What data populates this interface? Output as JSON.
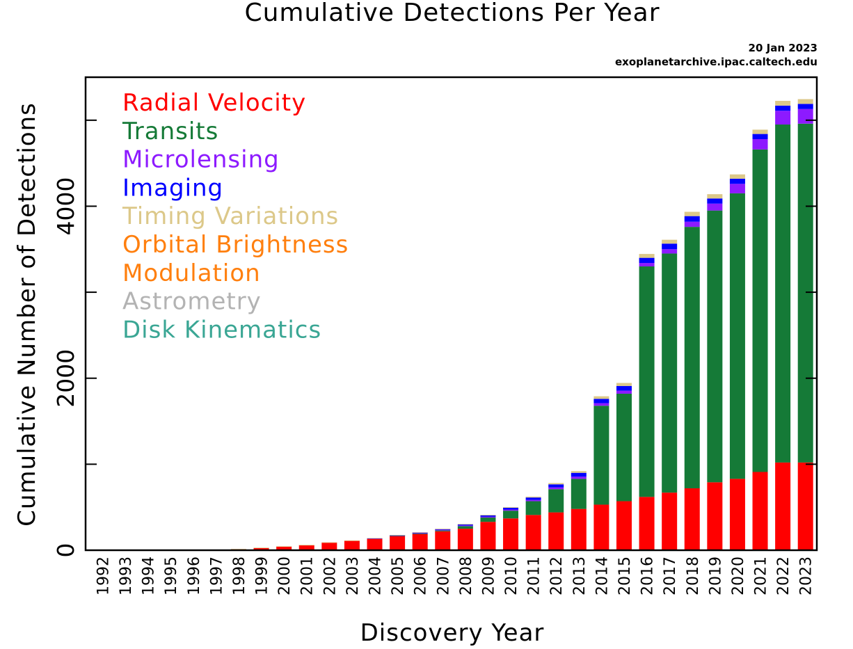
{
  "chart_data": {
    "type": "bar",
    "stacked": true,
    "title": "Cumulative Detections Per Year",
    "xlabel": "Discovery Year",
    "ylabel": "Cumulative Number of Detections",
    "credit_date": "20 Jan 2023",
    "credit_source": "exoplanetarchive.ipac.caltech.edu",
    "ylim": [
      0,
      5500
    ],
    "yticks_labeled": [
      0,
      2000,
      4000
    ],
    "yticks_minor": [
      1000,
      3000,
      5000
    ],
    "grid": false,
    "legend_position": "top-left",
    "categories": [
      "1992",
      "1993",
      "1994",
      "1995",
      "1996",
      "1997",
      "1998",
      "1999",
      "2000",
      "2001",
      "2002",
      "2003",
      "2004",
      "2005",
      "2006",
      "2007",
      "2008",
      "2009",
      "2010",
      "2011",
      "2012",
      "2013",
      "2014",
      "2015",
      "2016",
      "2017",
      "2018",
      "2019",
      "2020",
      "2021",
      "2022",
      "2023"
    ],
    "series": [
      {
        "name": "Radial Velocity",
        "color": "#ff0000",
        "values": [
          0,
          0,
          0,
          1,
          5,
          6,
          13,
          28,
          44,
          60,
          90,
          112,
          136,
          166,
          190,
          220,
          250,
          330,
          370,
          410,
          440,
          480,
          530,
          570,
          620,
          670,
          720,
          790,
          830,
          910,
          1020,
          1020
        ]
      },
      {
        "name": "Transits",
        "color": "#157a37",
        "values": [
          0,
          0,
          0,
          0,
          0,
          0,
          0,
          0,
          0,
          0,
          0,
          0,
          0,
          3,
          4,
          10,
          30,
          50,
          90,
          160,
          270,
          350,
          1150,
          1250,
          2680,
          2780,
          3040,
          3160,
          3320,
          3750,
          3930,
          3940
        ]
      },
      {
        "name": "Microlensing",
        "color": "#8d1aff",
        "values": [
          0,
          0,
          0,
          0,
          0,
          0,
          0,
          0,
          0,
          0,
          0,
          0,
          2,
          4,
          6,
          8,
          8,
          10,
          13,
          15,
          20,
          25,
          30,
          35,
          40,
          50,
          60,
          80,
          110,
          120,
          160,
          170
        ]
      },
      {
        "name": "Imaging",
        "color": "#0000ff",
        "values": [
          0,
          0,
          0,
          0,
          0,
          0,
          0,
          0,
          0,
          0,
          0,
          0,
          1,
          2,
          6,
          8,
          12,
          16,
          20,
          28,
          36,
          45,
          50,
          55,
          60,
          65,
          65,
          60,
          60,
          60,
          60,
          60
        ]
      },
      {
        "name": "Timing Variations",
        "color": "#dcc889",
        "values": [
          2,
          2,
          2,
          2,
          2,
          2,
          2,
          2,
          2,
          2,
          2,
          2,
          3,
          3,
          4,
          4,
          5,
          5,
          8,
          10,
          15,
          20,
          30,
          35,
          45,
          45,
          50,
          50,
          50,
          50,
          55,
          55
        ]
      },
      {
        "name": "Orbital Brightness",
        "color": "#ff7f0e",
        "values": [
          0,
          0,
          0,
          0,
          0,
          0,
          0,
          0,
          0,
          0,
          0,
          0,
          0,
          0,
          0,
          0,
          0,
          0,
          0,
          0,
          0,
          0,
          0,
          0,
          0,
          0,
          0,
          0,
          0,
          0,
          0,
          0
        ]
      },
      {
        "name": "Modulation",
        "color": "#ff7f0e",
        "values": [
          0,
          0,
          0,
          0,
          0,
          0,
          0,
          0,
          0,
          0,
          0,
          0,
          0,
          0,
          0,
          0,
          0,
          0,
          0,
          0,
          0,
          0,
          0,
          0,
          0,
          0,
          0,
          0,
          0,
          0,
          0,
          0
        ]
      },
      {
        "name": "Astrometry",
        "color": "#b3b3b3",
        "values": [
          0,
          0,
          0,
          0,
          0,
          0,
          0,
          0,
          0,
          0,
          0,
          0,
          0,
          0,
          0,
          0,
          0,
          0,
          0,
          0,
          0,
          0,
          0,
          0,
          0,
          0,
          0,
          0,
          0,
          0,
          0,
          0
        ]
      },
      {
        "name": "Disk Kinematics",
        "color": "#3aa694",
        "values": [
          0,
          0,
          0,
          0,
          0,
          0,
          0,
          0,
          0,
          0,
          0,
          0,
          0,
          0,
          0,
          0,
          0,
          0,
          0,
          0,
          0,
          0,
          0,
          0,
          0,
          0,
          0,
          0,
          0,
          0,
          0,
          0
        ]
      }
    ],
    "legend": [
      {
        "text": "Radial Velocity",
        "color": "#ff0000"
      },
      {
        "text": "Transits",
        "color": "#157a37"
      },
      {
        "text": "Microlensing",
        "color": "#8d1aff"
      },
      {
        "text": "Imaging",
        "color": "#0000ff"
      },
      {
        "text": "Timing Variations",
        "color": "#dcc889"
      },
      {
        "text": "Orbital Brightness",
        "color": "#ff7f0e"
      },
      {
        "text": "Modulation",
        "color": "#ff7f0e"
      },
      {
        "text": "Astrometry",
        "color": "#b3b3b3"
      },
      {
        "text": "Disk Kinematics",
        "color": "#3aa694"
      }
    ]
  }
}
